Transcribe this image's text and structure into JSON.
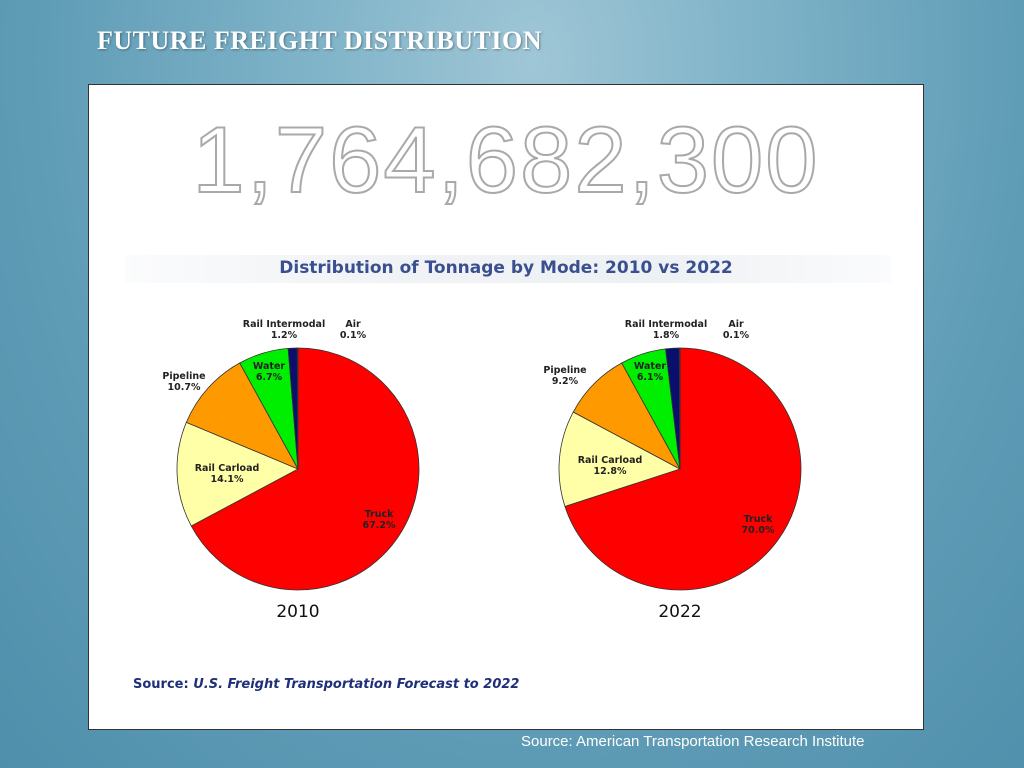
{
  "slide": {
    "title": "FUTURE FREIGHT DISTRIBUTION",
    "big_number": "1,764,682,300",
    "footer_source": "Source: American Transportation Research Institute"
  },
  "chart_source": {
    "label": "Source:",
    "publication": "U.S. Freight Transportation Forecast to 2022"
  },
  "chart_data": [
    {
      "type": "pie",
      "title": "Distribution of Tonnage by Mode: 2010 vs 2022",
      "year_label": "2010",
      "slices": [
        {
          "name": "Truck",
          "value": 67.2,
          "label": "67.2%",
          "color": "#ff0000"
        },
        {
          "name": "Rail Carload",
          "value": 14.1,
          "label": "14.1%",
          "color": "#ffffa8"
        },
        {
          "name": "Pipeline",
          "value": 10.7,
          "label": "10.7%",
          "color": "#ff9900"
        },
        {
          "name": "Water",
          "value": 6.7,
          "label": "6.7%",
          "color": "#00ee00"
        },
        {
          "name": "Rail Intermodal",
          "value": 1.2,
          "label": "1.2%",
          "color": "#0a0f6e"
        },
        {
          "name": "Air",
          "value": 0.1,
          "label": "0.1%",
          "color": "#2a2a8a"
        }
      ]
    },
    {
      "type": "pie",
      "title": "Distribution of Tonnage by Mode: 2010 vs 2022",
      "year_label": "2022",
      "slices": [
        {
          "name": "Truck",
          "value": 70.0,
          "label": "70.0%",
          "color": "#ff0000"
        },
        {
          "name": "Rail Carload",
          "value": 12.8,
          "label": "12.8%",
          "color": "#ffffa8"
        },
        {
          "name": "Pipeline",
          "value": 9.2,
          "label": "9.2%",
          "color": "#ff9900"
        },
        {
          "name": "Water",
          "value": 6.1,
          "label": "6.1%",
          "color": "#00ee00"
        },
        {
          "name": "Rail Intermodal",
          "value": 1.8,
          "label": "1.8%",
          "color": "#0a0f6e"
        },
        {
          "name": "Air",
          "value": 0.1,
          "label": "0.1%",
          "color": "#2a2a8a"
        }
      ]
    }
  ]
}
